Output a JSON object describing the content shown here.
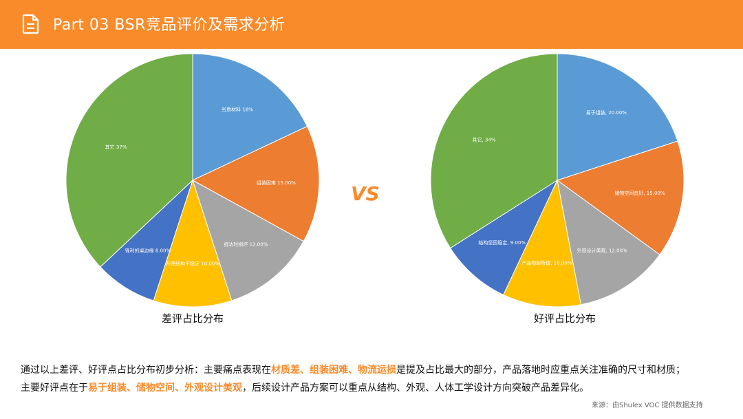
{
  "header": {
    "title": "Part 03  BSR竞品评价及需求分析",
    "icon": "document-icon",
    "background": "#F98B2B"
  },
  "vs_label": "VS",
  "chart_data": [
    {
      "type": "pie",
      "caption": "差评占比分布",
      "slices": [
        {
          "label": "劣质材料 18%",
          "value": 18,
          "color": "#5B9BD5"
        },
        {
          "label": "组装困难 15.00%",
          "value": 15,
          "color": "#ED7D31"
        },
        {
          "label": "抵达时损坏 12.00%",
          "value": 12,
          "color": "#A5A5A5"
        },
        {
          "label": "升降结构不稳定 10.00%",
          "value": 10,
          "color": "#FFC000"
        },
        {
          "label": "锋利的桌边缘 8.00%",
          "value": 8,
          "color": "#4472C4"
        },
        {
          "label": "其它 37%",
          "value": 37,
          "color": "#70AD47"
        }
      ]
    },
    {
      "type": "pie",
      "caption": "好评占比分布",
      "slices": [
        {
          "label": "易于组装, 20.00%",
          "value": 20,
          "color": "#5B9BD5"
        },
        {
          "label": "储物空间良好, 15.00%",
          "value": 15,
          "color": "#ED7D31"
        },
        {
          "label": "外观设计美观, 12.00%",
          "value": 12,
          "color": "#A5A5A5"
        },
        {
          "label": "产品物超所值, 10.00%",
          "value": 10,
          "color": "#FFC000"
        },
        {
          "label": "结构坚固稳定, 9.00%",
          "value": 9,
          "color": "#4472C4"
        },
        {
          "label": "其它, 34%",
          "value": 34,
          "color": "#70AD47"
        }
      ]
    }
  ],
  "summary": {
    "line1_a": "通过以上差评、好评点占比分布初步分析：主要痛点表现在",
    "line1_hl": "材质差、组装困难、物流运损",
    "line1_b": "是提及占比最大的部分，产品落地时应重点关注准确的尺寸和材质；",
    "line2_a": "主要好评点在于",
    "line2_hl": "易于组装、储物空间、外观设计美观",
    "line2_b": "，后续设计产品方案可以重点从结构、外观、人体工学设计方向突破产品差异化。"
  },
  "source": "来源：由Shulex VOC 提供数据支持"
}
